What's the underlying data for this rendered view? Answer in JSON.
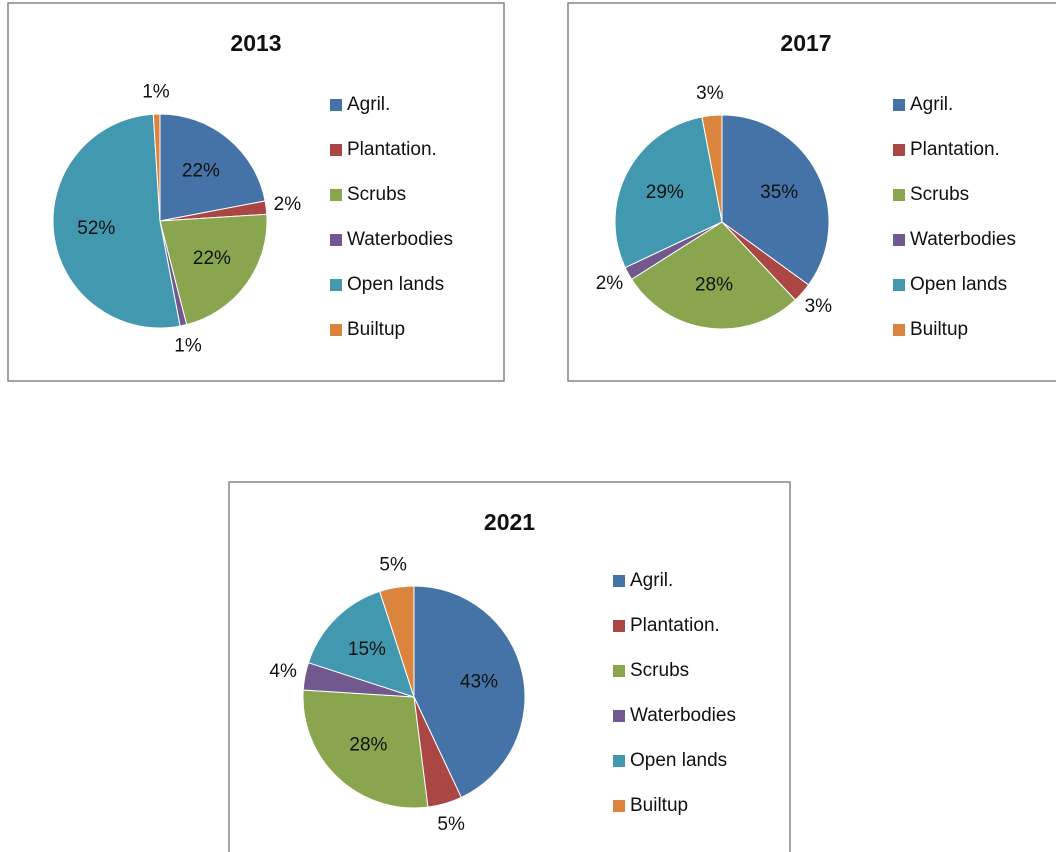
{
  "chart_data": [
    {
      "type": "pie",
      "title": "2013",
      "categories": [
        "Agril.",
        "Plantation.",
        "Scrubs",
        "Waterbodies",
        "Open lands",
        "Builtup"
      ],
      "values": [
        22,
        2,
        22,
        1,
        52,
        1
      ],
      "value_labels": [
        "22%",
        "2%",
        "22%",
        "1%",
        "52%",
        "1%"
      ],
      "colors": [
        "#4572a7",
        "#aa4643",
        "#89a54e",
        "#71588f",
        "#4198af",
        "#db843d"
      ]
    },
    {
      "type": "pie",
      "title": "2017",
      "categories": [
        "Agril.",
        "Plantation.",
        "Scrubs",
        "Waterbodies",
        "Open lands",
        "Builtup"
      ],
      "values": [
        35,
        3,
        28,
        2,
        29,
        3
      ],
      "value_labels": [
        "35%",
        "3%",
        "28%",
        "2%",
        "29%",
        "3%"
      ],
      "colors": [
        "#4572a7",
        "#aa4643",
        "#89a54e",
        "#71588f",
        "#4198af",
        "#db843d"
      ]
    },
    {
      "type": "pie",
      "title": "2021",
      "categories": [
        "Agril.",
        "Plantation.",
        "Scrubs",
        "Waterbodies",
        "Open lands",
        "Builtup"
      ],
      "values": [
        43,
        5,
        28,
        4,
        15,
        5
      ],
      "value_labels": [
        "43%",
        "5%",
        "28%",
        "4%",
        "15%",
        "5%"
      ],
      "colors": [
        "#4572a7",
        "#aa4643",
        "#89a54e",
        "#71588f",
        "#4198af",
        "#db843d"
      ]
    }
  ]
}
